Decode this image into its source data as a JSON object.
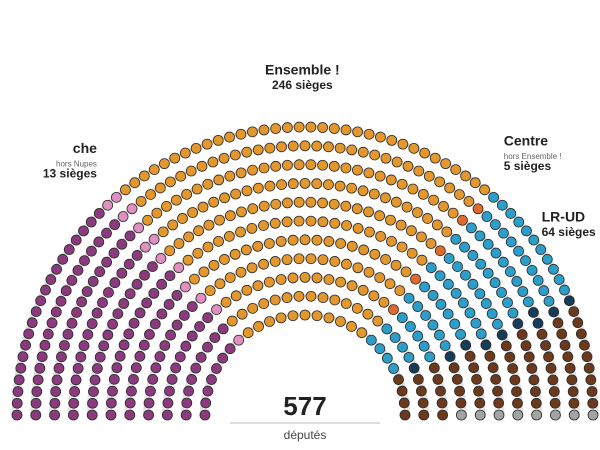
{
  "chart_data": {
    "type": "parliament",
    "categories": [
      null,
      "che",
      "Ensemble !",
      "Centre",
      null,
      null,
      "LR-UD",
      null
    ],
    "subtitles": [
      null,
      "hors Nupes",
      null,
      "hors Ensemble !",
      null,
      null,
      null,
      null
    ],
    "values": [
      151,
      13,
      246,
      5,
      80,
      10,
      64,
      8
    ],
    "value_labels": [
      null,
      "13 sièges",
      "246 sièges",
      "5 sièges",
      null,
      null,
      "64 sièges",
      null
    ],
    "colors": [
      "#8c3a7e",
      "#e08fc0",
      "#e3972c",
      "#de6a2c",
      "#2b9fc9",
      "#163c5a",
      "#6b3a1c",
      "#a3a3a3"
    ],
    "total": 577,
    "total_label": "députés"
  }
}
